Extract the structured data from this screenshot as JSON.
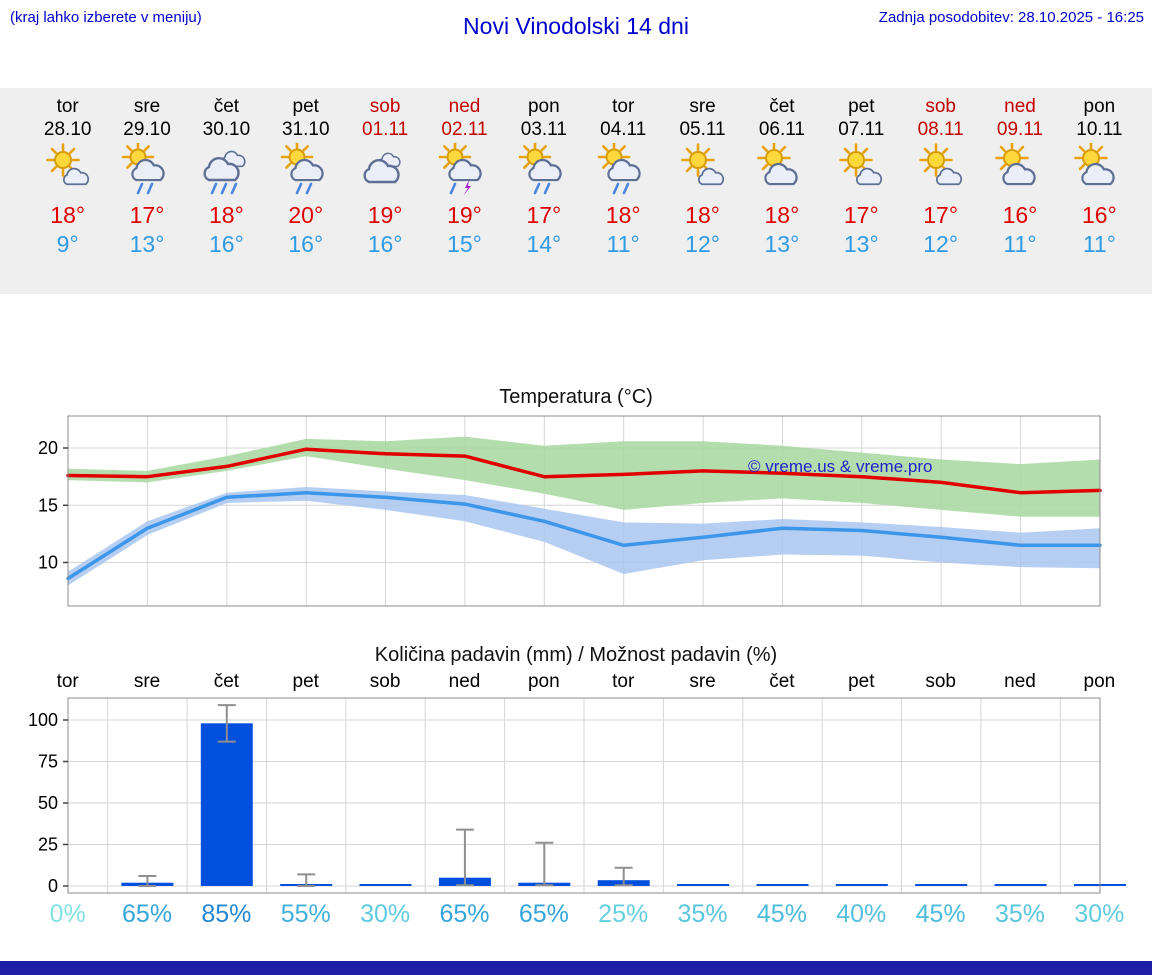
{
  "header": {
    "left_note": "(kraj lahko izberete v meniju)",
    "title": "Novi Vinodolski 14 dni",
    "last_update": "Zadnja posodobitev: 28.10.2025 - 16:25"
  },
  "colors": {
    "header_blue": "#0000cc",
    "weekend_red": "#c40000",
    "temp_max_red": "#e00000",
    "temp_min_blue": "#2e9be4",
    "precip_bar_blue": "#004fdd",
    "footer_bar_navy": "#1e1ea8",
    "strip_background": "#efefef"
  },
  "days": [
    {
      "name": "tor",
      "date": "28.10",
      "weekend": false,
      "icon": "mostly-sunny",
      "tmax": "18°",
      "tmin": "9°"
    },
    {
      "name": "sre",
      "date": "29.10",
      "weekend": false,
      "icon": "sun-showers",
      "tmax": "17°",
      "tmin": "13°"
    },
    {
      "name": "čet",
      "date": "30.10",
      "weekend": false,
      "icon": "rain",
      "tmax": "18°",
      "tmin": "16°"
    },
    {
      "name": "pet",
      "date": "31.10",
      "weekend": false,
      "icon": "sun-showers",
      "tmax": "20°",
      "tmin": "16°"
    },
    {
      "name": "sob",
      "date": "01.11",
      "weekend": true,
      "icon": "cloudy",
      "tmax": "19°",
      "tmin": "16°"
    },
    {
      "name": "ned",
      "date": "02.11",
      "weekend": true,
      "icon": "sun-thunder",
      "tmax": "19°",
      "tmin": "15°"
    },
    {
      "name": "pon",
      "date": "03.11",
      "weekend": false,
      "icon": "sun-showers",
      "tmax": "17°",
      "tmin": "14°"
    },
    {
      "name": "tor",
      "date": "04.11",
      "weekend": false,
      "icon": "sun-showers",
      "tmax": "18°",
      "tmin": "11°"
    },
    {
      "name": "sre",
      "date": "05.11",
      "weekend": false,
      "icon": "mostly-sunny",
      "tmax": "18°",
      "tmin": "12°"
    },
    {
      "name": "čet",
      "date": "06.11",
      "weekend": false,
      "icon": "partly-cloudy",
      "tmax": "18°",
      "tmin": "13°"
    },
    {
      "name": "pet",
      "date": "07.11",
      "weekend": false,
      "icon": "mostly-sunny",
      "tmax": "17°",
      "tmin": "13°"
    },
    {
      "name": "sob",
      "date": "08.11",
      "weekend": true,
      "icon": "mostly-sunny",
      "tmax": "17°",
      "tmin": "12°"
    },
    {
      "name": "ned",
      "date": "09.11",
      "weekend": true,
      "icon": "partly-cloudy",
      "tmax": "16°",
      "tmin": "11°"
    },
    {
      "name": "pon",
      "date": "10.11",
      "weekend": false,
      "icon": "partly-cloudy",
      "tmax": "16°",
      "tmin": "11°"
    }
  ],
  "chart_data": [
    {
      "type": "line",
      "title": "Temperatura (°C)",
      "categories": [
        "tor 28.10",
        "sre 29.10",
        "čet 30.10",
        "pet 31.10",
        "sob 01.11",
        "ned 02.11",
        "pon 03.11",
        "tor 04.11",
        "sre 05.11",
        "čet 06.11",
        "pet 07.11",
        "sob 08.11",
        "ned 09.11",
        "pon 10.11"
      ],
      "ylim": [
        6.2,
        22.8
      ],
      "yticks": [
        10,
        15,
        20
      ],
      "grid": true,
      "legend": "none",
      "watermark": "© vreme.us & vreme.pro",
      "series": [
        {
          "name": "max temperature",
          "color": "#e00000",
          "band_color": "#a7d7a0",
          "values": [
            17.6,
            17.5,
            18.4,
            19.9,
            19.5,
            19.3,
            17.5,
            17.7,
            18.0,
            17.8,
            17.5,
            17.0,
            16.1,
            16.3
          ],
          "band_high": [
            18.2,
            18.0,
            19.3,
            20.8,
            20.6,
            21.0,
            20.2,
            20.6,
            20.6,
            20.2,
            19.6,
            19.0,
            18.6,
            19.0
          ],
          "band_low": [
            17.2,
            17.0,
            18.0,
            19.3,
            18.2,
            17.2,
            16.0,
            14.6,
            15.2,
            15.6,
            15.2,
            14.6,
            14.0,
            14.0
          ]
        },
        {
          "name": "min temperature",
          "color": "#3c96ea",
          "band_color": "#a9c6ee",
          "values": [
            8.6,
            13.0,
            15.7,
            16.1,
            15.7,
            15.1,
            13.6,
            11.5,
            12.2,
            13.0,
            12.8,
            12.2,
            11.5,
            11.5
          ],
          "band_high": [
            9.2,
            13.6,
            16.1,
            16.6,
            16.2,
            15.9,
            14.7,
            13.5,
            13.4,
            13.8,
            13.5,
            13.1,
            12.6,
            13.0
          ],
          "band_low": [
            8.0,
            12.4,
            15.2,
            15.4,
            14.6,
            13.6,
            11.8,
            9.0,
            10.2,
            10.7,
            10.6,
            10.0,
            9.6,
            9.5
          ]
        }
      ]
    },
    {
      "type": "bar",
      "title": "Količina padavin (mm) / Možnost padavin (%)",
      "categories": [
        "tor",
        "sre",
        "čet",
        "pet",
        "sob",
        "ned",
        "pon",
        "tor",
        "sre",
        "čet",
        "pet",
        "sob",
        "ned",
        "pon"
      ],
      "ylim": [
        0,
        113
      ],
      "yticks": [
        0,
        25,
        50,
        75,
        100
      ],
      "bar_color": "#004fdd",
      "values": [
        0,
        2,
        98,
        1,
        0.5,
        5,
        2,
        3.5,
        0.5,
        0.5,
        0.5,
        0.5,
        0.5,
        0.5
      ],
      "error_low": [
        0,
        0,
        87,
        0,
        0,
        0.5,
        0.5,
        0.5,
        0,
        0,
        0,
        0,
        0,
        0
      ],
      "error_high": [
        0,
        6,
        109,
        7,
        1,
        34,
        26,
        11,
        1,
        1,
        1,
        1,
        1,
        1
      ],
      "pop_percent": [
        0,
        65,
        85,
        55,
        30,
        65,
        65,
        25,
        35,
        45,
        40,
        45,
        35,
        30
      ]
    }
  ]
}
